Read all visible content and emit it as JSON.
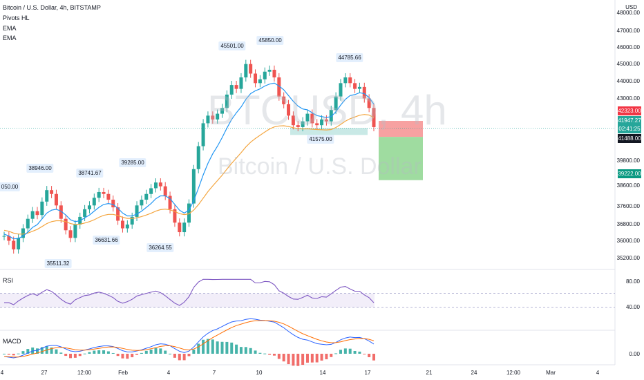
{
  "header": {
    "title": "Bitcoin / U.S. Dollar, 4h, BITSTAMP",
    "indicators": [
      "Pivots HL",
      "EMA",
      "EMA"
    ],
    "currency": "USD"
  },
  "watermark": {
    "symbol": "BTCUSD, 4h",
    "name": "Bitcoin / U.S. Dollar"
  },
  "colors": {
    "up": "#26a69a",
    "down": "#ef5350",
    "ema_fast": "#2196f3",
    "ema_slow": "#f4a640",
    "rsi": "#7e57c2",
    "macd": "#2962ff",
    "signal": "#ff6d00",
    "stop_zone": "#f7a1a1",
    "target_zone": "#9fdca0",
    "support_zone": "#b2dfdb"
  },
  "price_axis": {
    "ticks": [
      "48000.00",
      "47000.00",
      "46000.00",
      "45000.00",
      "44000.00",
      "43000.00",
      "39800.00",
      "38600.00",
      "37600.00",
      "36800.00",
      "36000.00",
      "35200.00"
    ]
  },
  "price_tags": {
    "stop": "42323.00",
    "last": "41947.27",
    "countdown": "02:41:25",
    "entry": "41488.00",
    "target": "39222.00"
  },
  "pivots": [
    "050.00",
    "38946.00",
    "35511.32",
    "38741.67",
    "36631.66",
    "39285.00",
    "36264.55",
    "45501.00",
    "45850.00",
    "44785.66",
    "41575.00"
  ],
  "rsi": {
    "label": "RSI",
    "ticks": [
      "80.00",
      "40.00"
    ]
  },
  "macd": {
    "label": "MACD",
    "ticks": [
      "0.00"
    ]
  },
  "time_axis": [
    "4",
    "27",
    "12:00",
    "Feb",
    "4",
    "7",
    "10",
    "14",
    "17",
    "21",
    "24",
    "12:00",
    "Mar",
    "4"
  ],
  "chart_data": {
    "type": "candlestick",
    "title": "Bitcoin / U.S. Dollar, 4h, BITSTAMP",
    "closes": [
      36300,
      36050,
      35600,
      36200,
      36700,
      37200,
      37600,
      37400,
      38100,
      38700,
      38500,
      37900,
      37200,
      36600,
      36200,
      36900,
      37300,
      37700,
      37900,
      38300,
      38600,
      38500,
      38200,
      37800,
      37100,
      36700,
      36900,
      37300,
      37900,
      38200,
      38500,
      38800,
      39100,
      38900,
      38400,
      37700,
      37000,
      36500,
      37000,
      38000,
      39800,
      41000,
      42200,
      42600,
      42400,
      42700,
      43000,
      43700,
      44200,
      44000,
      44600,
      45300,
      44800,
      44300,
      44500,
      44900,
      45000,
      44600,
      43600,
      43200,
      42600,
      42100,
      42000,
      42300,
      42700,
      42200,
      42100,
      42400,
      42300,
      42900,
      43600,
      44300,
      44600,
      44300,
      44000,
      44100,
      43500,
      43000,
      42000
    ],
    "ema_fast": [
      36400,
      36300,
      36150,
      36170,
      36300,
      36500,
      36750,
      36900,
      37200,
      37500,
      37650,
      37700,
      37600,
      37400,
      37150,
      37050,
      37100,
      37250,
      37400,
      37600,
      37800,
      37950,
      38000,
      37950,
      37750,
      37500,
      37350,
      37350,
      37450,
      37600,
      37800,
      38000,
      38250,
      38400,
      38400,
      38250,
      37950,
      37650,
      37500,
      37650,
      38150,
      38800,
      39500,
      40100,
      40600,
      41000,
      41450,
      41950,
      42400,
      42750,
      43050,
      43450,
      43750,
      43900,
      44000,
      44150,
      44250,
      44300,
      44150,
      43950,
      43650,
      43350,
      43100,
      42950,
      42900,
      42750,
      42600,
      42550,
      42500,
      42550,
      42800,
      43150,
      43450,
      43650,
      43700,
      43800,
      43750,
      43550,
      43200
    ],
    "ema_slow": [
      36600,
      36550,
      36450,
      36400,
      36400,
      36450,
      36550,
      36650,
      36800,
      36950,
      37050,
      37100,
      37100,
      37050,
      36950,
      36900,
      36920,
      36980,
      37050,
      37150,
      37280,
      37380,
      37430,
      37430,
      37370,
      37280,
      37220,
      37220,
      37250,
      37320,
      37400,
      37490,
      37600,
      37680,
      37710,
      37670,
      37580,
      37470,
      37420,
      37460,
      37660,
      37940,
      38280,
      38620,
      38920,
      39200,
      39480,
      39800,
      40100,
      40380,
      40660,
      40960,
      41210,
      41400,
      41570,
      41740,
      41900,
      42010,
      42060,
      42070,
      42030,
      41970,
      41920,
      41900,
      41910,
      41890,
      41870,
      41860,
      41850,
      41870,
      41980,
      42140,
      42310,
      42440,
      42530,
      42620,
      42660,
      42630,
      42500
    ],
    "zones": {
      "stop": [
        41488,
        42323
      ],
      "target": [
        39222,
        41488
      ],
      "entry": 41488
    },
    "rsi_range": [
      40,
      80
    ],
    "macd_axis": [
      0
    ]
  }
}
